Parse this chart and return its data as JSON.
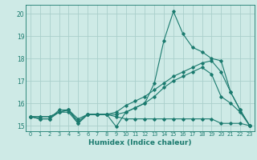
{
  "xlabel": "Humidex (Indice chaleur)",
  "xlim": [
    -0.5,
    23.5
  ],
  "ylim": [
    14.75,
    20.4
  ],
  "yticks": [
    15,
    16,
    17,
    18,
    19,
    20
  ],
  "xticks": [
    0,
    1,
    2,
    3,
    4,
    5,
    6,
    7,
    8,
    9,
    10,
    11,
    12,
    13,
    14,
    15,
    16,
    17,
    18,
    19,
    20,
    21,
    22,
    23
  ],
  "background_color": "#ceeae6",
  "grid_color": "#aacfcb",
  "line_color": "#1a7a6e",
  "series": [
    {
      "x": [
        0,
        1,
        2,
        3,
        4,
        5,
        6,
        7,
        8,
        9,
        10,
        11,
        12,
        13,
        14,
        15,
        16,
        17,
        18,
        19,
        20,
        21,
        22,
        23
      ],
      "y": [
        15.4,
        15.3,
        15.3,
        15.6,
        15.6,
        15.1,
        15.5,
        15.5,
        15.5,
        15.4,
        15.3,
        15.3,
        15.3,
        15.3,
        15.3,
        15.3,
        15.3,
        15.3,
        15.3,
        15.3,
        15.1,
        15.1,
        15.1,
        15.0
      ]
    },
    {
      "x": [
        0,
        1,
        2,
        3,
        4,
        5,
        6,
        7,
        8,
        9,
        10,
        11,
        12,
        13,
        14,
        15,
        16,
        17,
        18,
        19,
        20,
        21,
        22,
        23
      ],
      "y": [
        15.4,
        15.4,
        15.4,
        15.6,
        15.7,
        15.3,
        15.5,
        15.5,
        15.5,
        15.6,
        15.9,
        16.1,
        16.3,
        16.6,
        16.9,
        17.2,
        17.4,
        17.6,
        17.8,
        17.9,
        17.4,
        16.5,
        15.7,
        15.0
      ]
    },
    {
      "x": [
        0,
        1,
        2,
        3,
        4,
        5,
        6,
        7,
        8,
        9,
        10,
        11,
        12,
        13,
        14,
        15,
        16,
        17,
        18,
        19,
        20,
        21,
        22,
        23
      ],
      "y": [
        15.4,
        15.4,
        15.4,
        15.6,
        15.7,
        15.2,
        15.5,
        15.5,
        15.5,
        15.5,
        15.6,
        15.8,
        16.0,
        16.3,
        16.7,
        17.0,
        17.2,
        17.4,
        17.6,
        17.3,
        16.3,
        16.0,
        15.6,
        15.0
      ]
    },
    {
      "x": [
        0,
        1,
        2,
        3,
        4,
        5,
        6,
        7,
        8,
        9,
        10,
        11,
        12,
        13,
        14,
        15,
        16,
        17,
        18,
        19,
        20,
        21,
        22,
        23
      ],
      "y": [
        15.4,
        15.3,
        15.3,
        15.7,
        15.7,
        15.1,
        15.5,
        15.5,
        15.5,
        14.95,
        15.6,
        15.8,
        16.0,
        16.9,
        18.8,
        20.1,
        19.1,
        18.5,
        18.3,
        18.0,
        17.9,
        16.5,
        15.7,
        15.0
      ]
    }
  ]
}
